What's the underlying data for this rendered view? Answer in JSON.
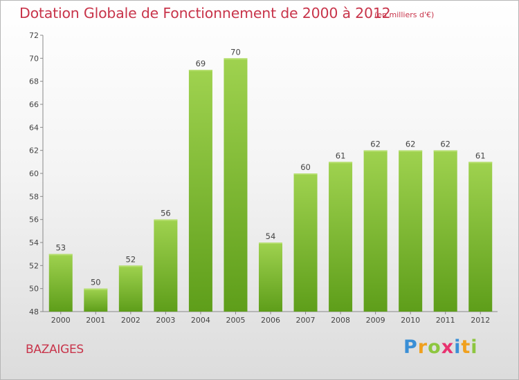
{
  "title": "Dotation Globale de Fonctionnement de 2000 à 2012",
  "unit_note": "(en milliers d'€)",
  "place": "BAZAIGES",
  "logo": {
    "text": "Proxiti",
    "letters": [
      "P",
      "r",
      "o",
      "x",
      "i",
      "t",
      "i"
    ],
    "colors": [
      "#3a8fd6",
      "#f0a01e",
      "#8dc63f",
      "#e8326f",
      "#3a8fd6",
      "#f0a01e",
      "#8dc63f"
    ]
  },
  "chart_data": {
    "type": "bar",
    "categories": [
      "2000",
      "2001",
      "2002",
      "2003",
      "2004",
      "2005",
      "2006",
      "2007",
      "2008",
      "2009",
      "2010",
      "2011",
      "2012"
    ],
    "values": [
      53,
      50,
      52,
      56,
      69,
      70,
      54,
      60,
      61,
      62,
      62,
      62,
      61
    ],
    "ylim": [
      48,
      72
    ],
    "yticks": [
      48,
      50,
      52,
      54,
      56,
      58,
      60,
      62,
      64,
      66,
      68,
      70,
      72
    ],
    "grid": false,
    "bar_color": "#7ab833",
    "bar_color_light": "#9ccf4d"
  }
}
